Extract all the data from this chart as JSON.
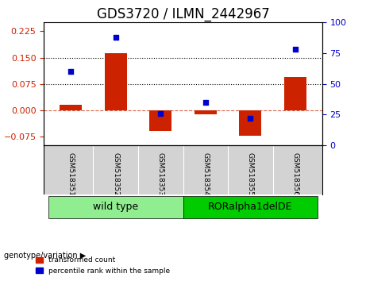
{
  "title": "GDS3720 / ILMN_2442967",
  "samples": [
    "GSM518351",
    "GSM518352",
    "GSM518353",
    "GSM518354",
    "GSM518355",
    "GSM518356"
  ],
  "transformed_count": [
    0.015,
    0.163,
    -0.06,
    -0.012,
    -0.072,
    0.095
  ],
  "percentile_rank": [
    60,
    88,
    26,
    35,
    22,
    78
  ],
  "groups": [
    {
      "label": "wild type",
      "indices": [
        0,
        1,
        2
      ],
      "color": "#90EE90"
    },
    {
      "label": "RORalpha1delDE",
      "indices": [
        3,
        4,
        5
      ],
      "color": "#00CC00"
    }
  ],
  "bar_color": "#CC2200",
  "scatter_color": "#0000CC",
  "ylim_left": [
    -0.1,
    0.25
  ],
  "ylim_right": [
    0,
    100
  ],
  "yticks_left": [
    -0.075,
    0,
    0.075,
    0.15,
    0.225
  ],
  "yticks_right": [
    0,
    25,
    50,
    75,
    100
  ],
  "hlines": [
    0.075,
    0.15
  ],
  "zero_line": 0.0,
  "xlabel_rotation": -90,
  "bar_width": 0.5,
  "genotype_label": "genotype/variation",
  "legend_items": [
    {
      "label": "transformed count",
      "color": "#CC2200"
    },
    {
      "label": "percentile rank within the sample",
      "color": "#0000CC"
    }
  ],
  "title_fontsize": 12,
  "tick_fontsize": 8,
  "label_fontsize": 8,
  "group_label_fontsize": 9
}
